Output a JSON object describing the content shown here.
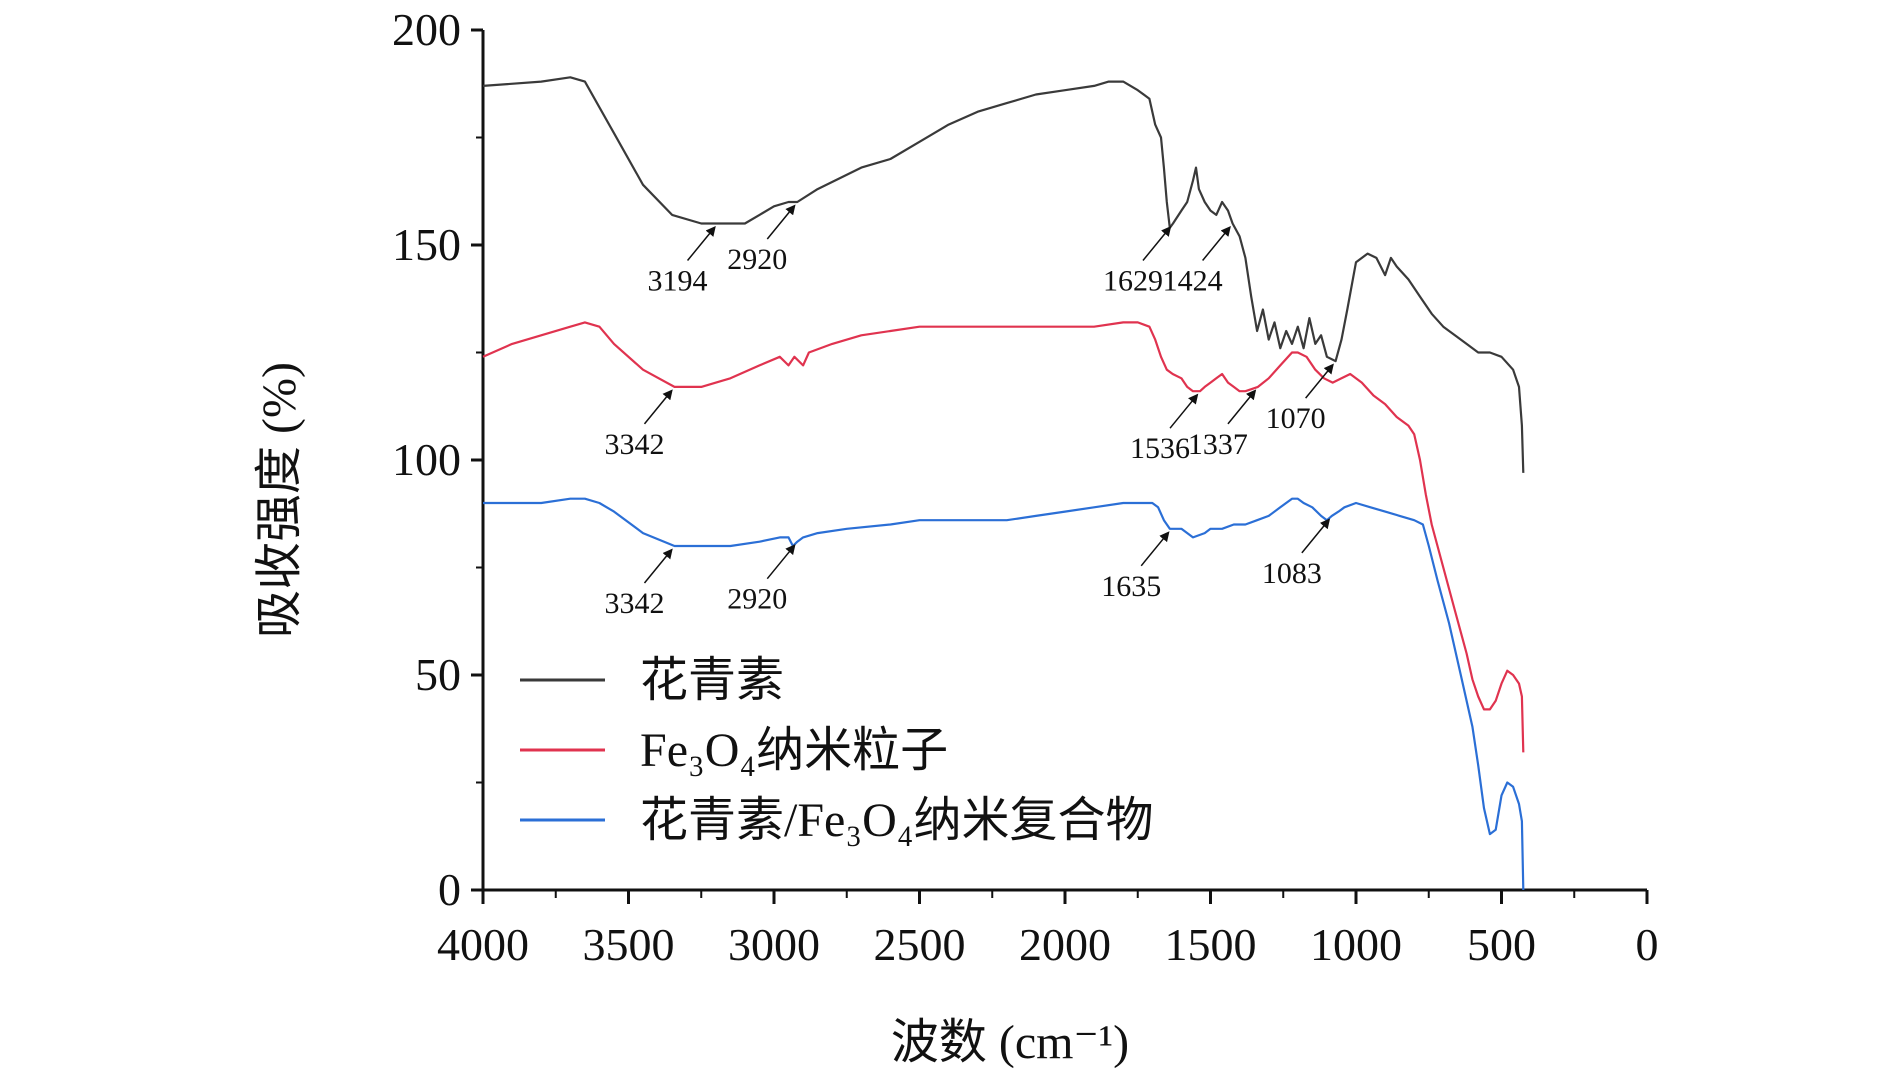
{
  "chart_data": {
    "type": "line",
    "xlabel": "波数 (cm⁻¹)",
    "ylabel": "吸收强度 (%)",
    "xlim": [
      4000,
      0
    ],
    "ylim": [
      0,
      200
    ],
    "x_ticks": [
      "4000",
      "3500",
      "3000",
      "2500",
      "2000",
      "1500",
      "1000",
      "500",
      "0"
    ],
    "y_ticks": [
      "0",
      "50",
      "100",
      "150",
      "200"
    ],
    "grid": false,
    "legend_position": "bottom-left",
    "series": [
      {
        "name": "花青素",
        "color": "#3a3a3a",
        "points": [
          [
            4000,
            187
          ],
          [
            3800,
            188
          ],
          [
            3700,
            189
          ],
          [
            3650,
            188
          ],
          [
            3550,
            176
          ],
          [
            3450,
            164
          ],
          [
            3350,
            157
          ],
          [
            3250,
            155
          ],
          [
            3194,
            155
          ],
          [
            3100,
            155
          ],
          [
            3050,
            157
          ],
          [
            3000,
            159
          ],
          [
            2950,
            160
          ],
          [
            2920,
            160
          ],
          [
            2850,
            163
          ],
          [
            2700,
            168
          ],
          [
            2600,
            170
          ],
          [
            2500,
            174
          ],
          [
            2400,
            178
          ],
          [
            2300,
            181
          ],
          [
            2200,
            183
          ],
          [
            2100,
            185
          ],
          [
            2000,
            186
          ],
          [
            1900,
            187
          ],
          [
            1850,
            188
          ],
          [
            1800,
            188
          ],
          [
            1750,
            186
          ],
          [
            1710,
            184
          ],
          [
            1690,
            178
          ],
          [
            1670,
            175
          ],
          [
            1660,
            168
          ],
          [
            1650,
            160
          ],
          [
            1640,
            154
          ],
          [
            1629,
            155
          ],
          [
            1600,
            158
          ],
          [
            1580,
            160
          ],
          [
            1560,
            165
          ],
          [
            1550,
            168
          ],
          [
            1540,
            163
          ],
          [
            1520,
            160
          ],
          [
            1500,
            158
          ],
          [
            1480,
            157
          ],
          [
            1460,
            160
          ],
          [
            1440,
            158
          ],
          [
            1424,
            155
          ],
          [
            1400,
            152
          ],
          [
            1380,
            147
          ],
          [
            1360,
            138
          ],
          [
            1340,
            130
          ],
          [
            1320,
            135
          ],
          [
            1300,
            128
          ],
          [
            1280,
            132
          ],
          [
            1260,
            126
          ],
          [
            1240,
            130
          ],
          [
            1220,
            127
          ],
          [
            1200,
            131
          ],
          [
            1180,
            126
          ],
          [
            1160,
            133
          ],
          [
            1140,
            127
          ],
          [
            1120,
            129
          ],
          [
            1100,
            124
          ],
          [
            1070,
            123
          ],
          [
            1050,
            128
          ],
          [
            1030,
            135
          ],
          [
            1000,
            146
          ],
          [
            960,
            148
          ],
          [
            930,
            147
          ],
          [
            900,
            143
          ],
          [
            880,
            147
          ],
          [
            860,
            145
          ],
          [
            820,
            142
          ],
          [
            780,
            138
          ],
          [
            740,
            134
          ],
          [
            700,
            131
          ],
          [
            660,
            129
          ],
          [
            620,
            127
          ],
          [
            580,
            125
          ],
          [
            540,
            125
          ],
          [
            500,
            124
          ],
          [
            460,
            121
          ],
          [
            440,
            117
          ],
          [
            430,
            108
          ],
          [
            425,
            97
          ]
        ]
      },
      {
        "name": "Fe₃O₄纳米粒子",
        "color": "#e0334f",
        "points": [
          [
            4000,
            124
          ],
          [
            3900,
            127
          ],
          [
            3800,
            129
          ],
          [
            3700,
            131
          ],
          [
            3650,
            132
          ],
          [
            3600,
            131
          ],
          [
            3550,
            127
          ],
          [
            3450,
            121
          ],
          [
            3342,
            117
          ],
          [
            3250,
            117
          ],
          [
            3150,
            119
          ],
          [
            3050,
            122
          ],
          [
            2980,
            124
          ],
          [
            2950,
            122
          ],
          [
            2930,
            124
          ],
          [
            2900,
            122
          ],
          [
            2880,
            125
          ],
          [
            2800,
            127
          ],
          [
            2700,
            129
          ],
          [
            2600,
            130
          ],
          [
            2500,
            131
          ],
          [
            2400,
            131
          ],
          [
            2300,
            131
          ],
          [
            2200,
            131
          ],
          [
            2100,
            131
          ],
          [
            2000,
            131
          ],
          [
            1900,
            131
          ],
          [
            1800,
            132
          ],
          [
            1750,
            132
          ],
          [
            1710,
            131
          ],
          [
            1690,
            128
          ],
          [
            1670,
            124
          ],
          [
            1650,
            121
          ],
          [
            1630,
            120
          ],
          [
            1600,
            119
          ],
          [
            1580,
            117
          ],
          [
            1560,
            116
          ],
          [
            1536,
            116
          ],
          [
            1520,
            117
          ],
          [
            1500,
            118
          ],
          [
            1480,
            119
          ],
          [
            1460,
            120
          ],
          [
            1440,
            118
          ],
          [
            1420,
            117
          ],
          [
            1400,
            116
          ],
          [
            1380,
            116
          ],
          [
            1337,
            117
          ],
          [
            1300,
            119
          ],
          [
            1260,
            122
          ],
          [
            1220,
            125
          ],
          [
            1200,
            125
          ],
          [
            1170,
            124
          ],
          [
            1140,
            121
          ],
          [
            1110,
            119
          ],
          [
            1080,
            118
          ],
          [
            1050,
            119
          ],
          [
            1020,
            120
          ],
          [
            980,
            118
          ],
          [
            940,
            115
          ],
          [
            900,
            113
          ],
          [
            860,
            110
          ],
          [
            820,
            108
          ],
          [
            800,
            106
          ],
          [
            780,
            100
          ],
          [
            760,
            92
          ],
          [
            740,
            85
          ],
          [
            700,
            75
          ],
          [
            660,
            65
          ],
          [
            620,
            55
          ],
          [
            600,
            49
          ],
          [
            580,
            45
          ],
          [
            560,
            42
          ],
          [
            540,
            42
          ],
          [
            520,
            44
          ],
          [
            500,
            48
          ],
          [
            480,
            51
          ],
          [
            460,
            50
          ],
          [
            440,
            48
          ],
          [
            430,
            45
          ],
          [
            425,
            32
          ]
        ]
      },
      {
        "name": "花青素/Fe₃O₄纳米复合物",
        "color": "#2b6fd6",
        "points": [
          [
            4000,
            90
          ],
          [
            3900,
            90
          ],
          [
            3800,
            90
          ],
          [
            3700,
            91
          ],
          [
            3650,
            91
          ],
          [
            3600,
            90
          ],
          [
            3550,
            88
          ],
          [
            3450,
            83
          ],
          [
            3342,
            80
          ],
          [
            3250,
            80
          ],
          [
            3150,
            80
          ],
          [
            3050,
            81
          ],
          [
            2980,
            82
          ],
          [
            2950,
            82
          ],
          [
            2935,
            80
          ],
          [
            2920,
            81
          ],
          [
            2900,
            82
          ],
          [
            2850,
            83
          ],
          [
            2750,
            84
          ],
          [
            2600,
            85
          ],
          [
            2500,
            86
          ],
          [
            2400,
            86
          ],
          [
            2300,
            86
          ],
          [
            2200,
            86
          ],
          [
            2100,
            87
          ],
          [
            2000,
            88
          ],
          [
            1900,
            89
          ],
          [
            1800,
            90
          ],
          [
            1750,
            90
          ],
          [
            1700,
            90
          ],
          [
            1680,
            89
          ],
          [
            1660,
            86
          ],
          [
            1640,
            84
          ],
          [
            1600,
            84
          ],
          [
            1560,
            82
          ],
          [
            1520,
            83
          ],
          [
            1500,
            84
          ],
          [
            1460,
            84
          ],
          [
            1420,
            85
          ],
          [
            1380,
            85
          ],
          [
            1340,
            86
          ],
          [
            1300,
            87
          ],
          [
            1260,
            89
          ],
          [
            1220,
            91
          ],
          [
            1200,
            91
          ],
          [
            1180,
            90
          ],
          [
            1150,
            89
          ],
          [
            1120,
            87
          ],
          [
            1100,
            86
          ],
          [
            1083,
            87
          ],
          [
            1060,
            88
          ],
          [
            1040,
            89
          ],
          [
            1000,
            90
          ],
          [
            950,
            89
          ],
          [
            900,
            88
          ],
          [
            850,
            87
          ],
          [
            800,
            86
          ],
          [
            770,
            85
          ],
          [
            750,
            80
          ],
          [
            720,
            72
          ],
          [
            680,
            62
          ],
          [
            640,
            50
          ],
          [
            600,
            38
          ],
          [
            580,
            29
          ],
          [
            560,
            19
          ],
          [
            540,
            13
          ],
          [
            520,
            14
          ],
          [
            500,
            22
          ],
          [
            480,
            25
          ],
          [
            460,
            24
          ],
          [
            440,
            20
          ],
          [
            430,
            16
          ],
          [
            425,
            0
          ]
        ]
      }
    ],
    "annotations": [
      {
        "text": "3194",
        "x": 3194,
        "y": 155
      },
      {
        "text": "2920",
        "x": 2920,
        "y": 160
      },
      {
        "text": "1629",
        "x": 1629,
        "y": 155
      },
      {
        "text": "1424",
        "x": 1424,
        "y": 155
      },
      {
        "text": "1070",
        "x": 1070,
        "y": 123
      },
      {
        "text": "3342",
        "x": 3342,
        "y": 117
      },
      {
        "text": "1536",
        "x": 1536,
        "y": 116
      },
      {
        "text": "1337",
        "x": 1337,
        "y": 117
      },
      {
        "text": "3342",
        "x": 3342,
        "y": 80
      },
      {
        "text": "2920",
        "x": 2920,
        "y": 81
      },
      {
        "text": "1635",
        "x": 1635,
        "y": 84
      },
      {
        "text": "1083",
        "x": 1083,
        "y": 87
      }
    ]
  }
}
